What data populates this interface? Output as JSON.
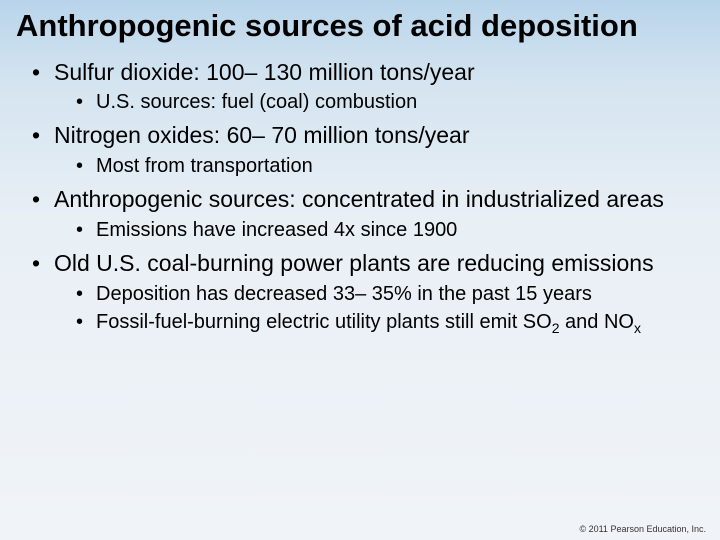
{
  "title": "Anthropogenic sources of acid deposition",
  "bullets": [
    {
      "text": "Sulfur dioxide: 100– 130 million tons/year",
      "sub": [
        {
          "text": "U.S. sources: fuel (coal) combustion"
        }
      ]
    },
    {
      "text": "Nitrogen oxides: 60– 70 million tons/year",
      "sub": [
        {
          "text": "Most from transportation"
        }
      ]
    },
    {
      "text": "Anthropogenic sources: concentrated in industrialized areas",
      "sub": [
        {
          "text": "Emissions have increased 4x since 1900"
        }
      ]
    },
    {
      "text": "Old U.S. coal-burning power plants are reducing emissions",
      "sub": [
        {
          "text": "Deposition has decreased 33– 35% in the past 15 years"
        },
        {
          "pre": "Fossil-fuel-burning electric utility plants still emit SO",
          "sub1": "2",
          "mid": " and NO",
          "sub2": "x"
        }
      ]
    }
  ],
  "footer": "© 2011 Pearson Education, Inc.",
  "colors": {
    "gradient_top": "#b8d4ea",
    "gradient_bottom": "#f0f4f8",
    "text": "#000000"
  },
  "typography": {
    "title_fontsize": 31,
    "main_bullet_fontsize": 23,
    "sub_bullet_fontsize": 20,
    "footer_fontsize": 9,
    "font_family": "Arial"
  }
}
